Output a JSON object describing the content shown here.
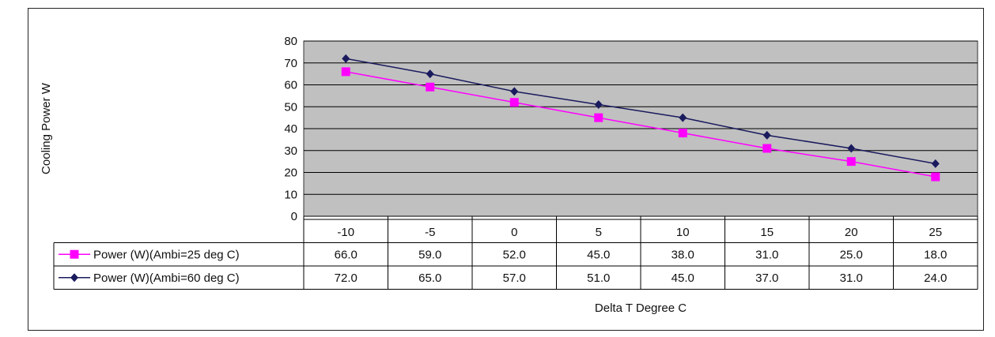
{
  "chart_data": {
    "type": "line",
    "title": "",
    "xlabel": "Delta T Degree C",
    "ylabel": "Cooling Power W",
    "ylim": [
      0,
      80
    ],
    "yticks": [
      "0",
      "10",
      "20",
      "30",
      "40",
      "50",
      "60",
      "70",
      "80"
    ],
    "categories": [
      "-10",
      "-5",
      "0",
      "5",
      "10",
      "15",
      "20",
      "25"
    ],
    "grid": true,
    "legend": "data-table-left",
    "series": [
      {
        "name": "Power (W)(Ambi=25 deg C)",
        "values": [
          66.0,
          59.0,
          52.0,
          45.0,
          38.0,
          31.0,
          25.0,
          18.0
        ],
        "labels": [
          "66.0",
          "59.0",
          "52.0",
          "45.0",
          "38.0",
          "31.0",
          "25.0",
          "18.0"
        ],
        "color": "#ff00ff",
        "marker": "square"
      },
      {
        "name": "Power (W)(Ambi=60 deg C)",
        "values": [
          72.0,
          65.0,
          57.0,
          51.0,
          45.0,
          37.0,
          31.0,
          24.0
        ],
        "labels": [
          "72.0",
          "65.0",
          "57.0",
          "51.0",
          "45.0",
          "37.0",
          "31.0",
          "24.0"
        ],
        "color": "#1a1a5e",
        "marker": "diamond"
      }
    ],
    "plot_background": "#c0c0c0"
  }
}
